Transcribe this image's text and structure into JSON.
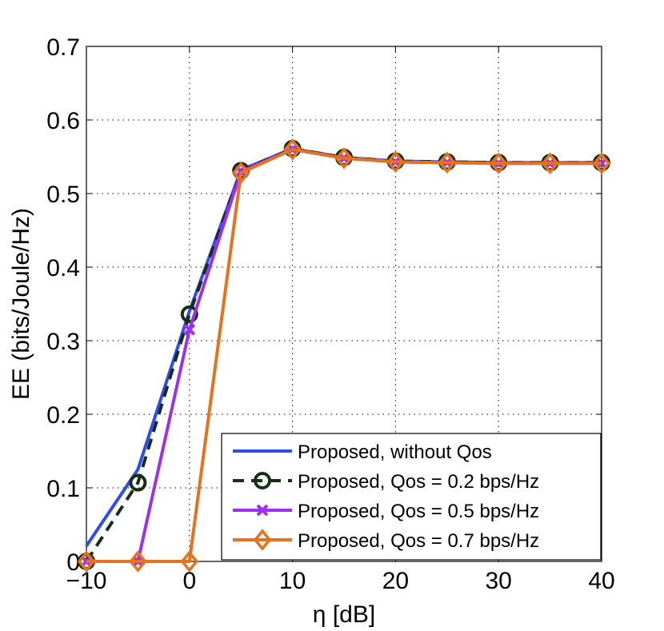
{
  "chart_data": {
    "type": "line",
    "title": "",
    "xlabel": "η [dB]",
    "ylabel": "EE (bits/Joule/Hz)",
    "xlim": [
      -10,
      40
    ],
    "ylim": [
      0,
      0.7
    ],
    "x": [
      -10,
      -5,
      0,
      5,
      10,
      15,
      20,
      25,
      30,
      35,
      40
    ],
    "x_ticks": [
      -10,
      0,
      10,
      20,
      30,
      40
    ],
    "x_tick_labels": [
      "−10",
      "0",
      "10",
      "20",
      "30",
      "40"
    ],
    "y_ticks": [
      0,
      0.1,
      0.2,
      0.3,
      0.4,
      0.5,
      0.6,
      0.7
    ],
    "y_tick_labels": [
      "0",
      "0.1",
      "0.2",
      "0.3",
      "0.4",
      "0.5",
      "0.6",
      "0.7"
    ],
    "grid": true,
    "legend_position": "bottom-right",
    "series": [
      {
        "name": "Proposed, without Qos",
        "color": "#2f4bf5",
        "style": "solid",
        "marker": "none",
        "values": [
          0.021,
          0.125,
          0.34,
          0.532,
          0.561,
          0.549,
          0.544,
          0.543,
          0.542,
          0.542,
          0.542
        ]
      },
      {
        "name": "Proposed,  Qos = 0.2 bps/Hz",
        "color": "#163016",
        "style": "dashed",
        "marker": "circle",
        "values": [
          0.0,
          0.107,
          0.336,
          0.531,
          0.561,
          0.549,
          0.544,
          0.543,
          0.542,
          0.542,
          0.542
        ]
      },
      {
        "name": "Proposed,  Qos = 0.5 bps/Hz",
        "color": "#9b30f0",
        "style": "solid",
        "marker": "x",
        "values": [
          0.0,
          0.0,
          0.315,
          0.53,
          0.56,
          0.548,
          0.543,
          0.542,
          0.541,
          0.541,
          0.541
        ]
      },
      {
        "name": "Proposed,  Qos = 0.7 bps/Hz",
        "color": "#e8711b",
        "style": "solid",
        "marker": "diamond",
        "values": [
          0.0,
          0.0,
          0.0,
          0.528,
          0.56,
          0.548,
          0.543,
          0.542,
          0.541,
          0.541,
          0.541
        ]
      }
    ]
  }
}
